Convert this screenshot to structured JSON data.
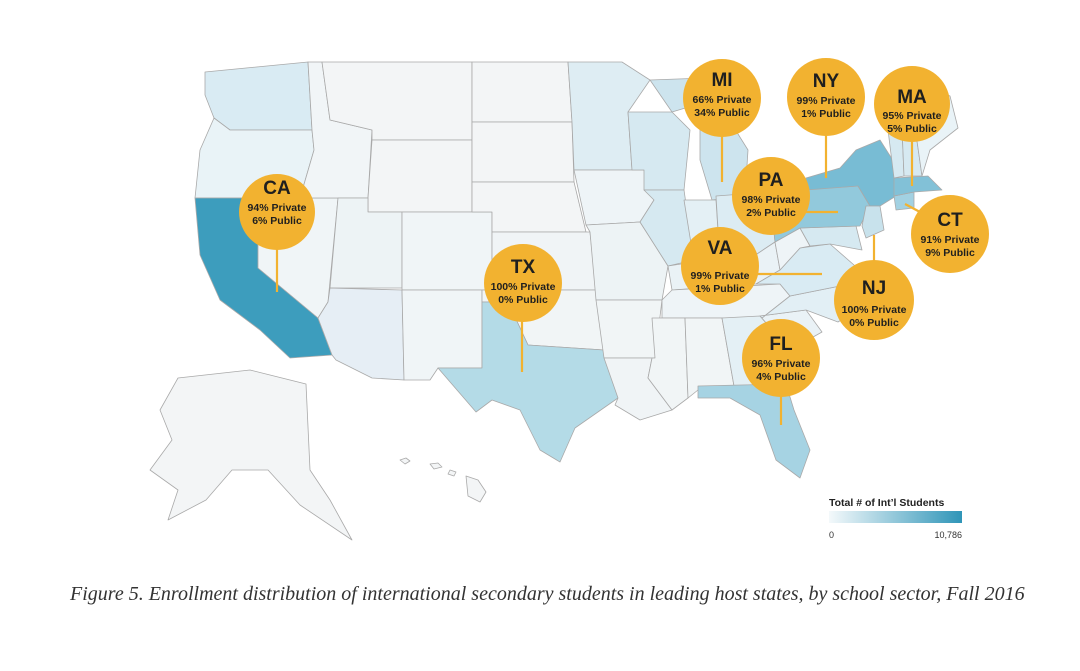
{
  "caption": "Figure 5. Enrollment distribution of international secondary students in leading host states, by school sector, Fall 2016",
  "legend": {
    "title": "Total # of Int’l Students",
    "min_label": "0",
    "max_label": "10,786",
    "color_low": "#f4f9fb",
    "color_high": "#2f95b8"
  },
  "colors": {
    "bubble": "#f2b230",
    "state_default": "#f3f5f6",
    "state_border": "#a9a9a9"
  },
  "bubbles": [
    {
      "abbr": "CA",
      "private": "94% Private",
      "public": "6% Public"
    },
    {
      "abbr": "TX",
      "private": "100% Private",
      "public": "0% Public"
    },
    {
      "abbr": "MI",
      "private": "66% Private",
      "public": "34% Public"
    },
    {
      "abbr": "NY",
      "private": "99% Private",
      "public": "1% Public"
    },
    {
      "abbr": "MA",
      "private": "95% Private",
      "public": "5% Public"
    },
    {
      "abbr": "PA",
      "private": "98% Private",
      "public": "2% Public"
    },
    {
      "abbr": "CT",
      "private": "91% Private",
      "public": "9% Public"
    },
    {
      "abbr": "VA",
      "private": "99% Private",
      "public": "1% Public"
    },
    {
      "abbr": "NJ",
      "private": "100% Private",
      "public": "0% Public"
    },
    {
      "abbr": "FL",
      "private": "96% Private",
      "public": "4% Public"
    }
  ]
}
